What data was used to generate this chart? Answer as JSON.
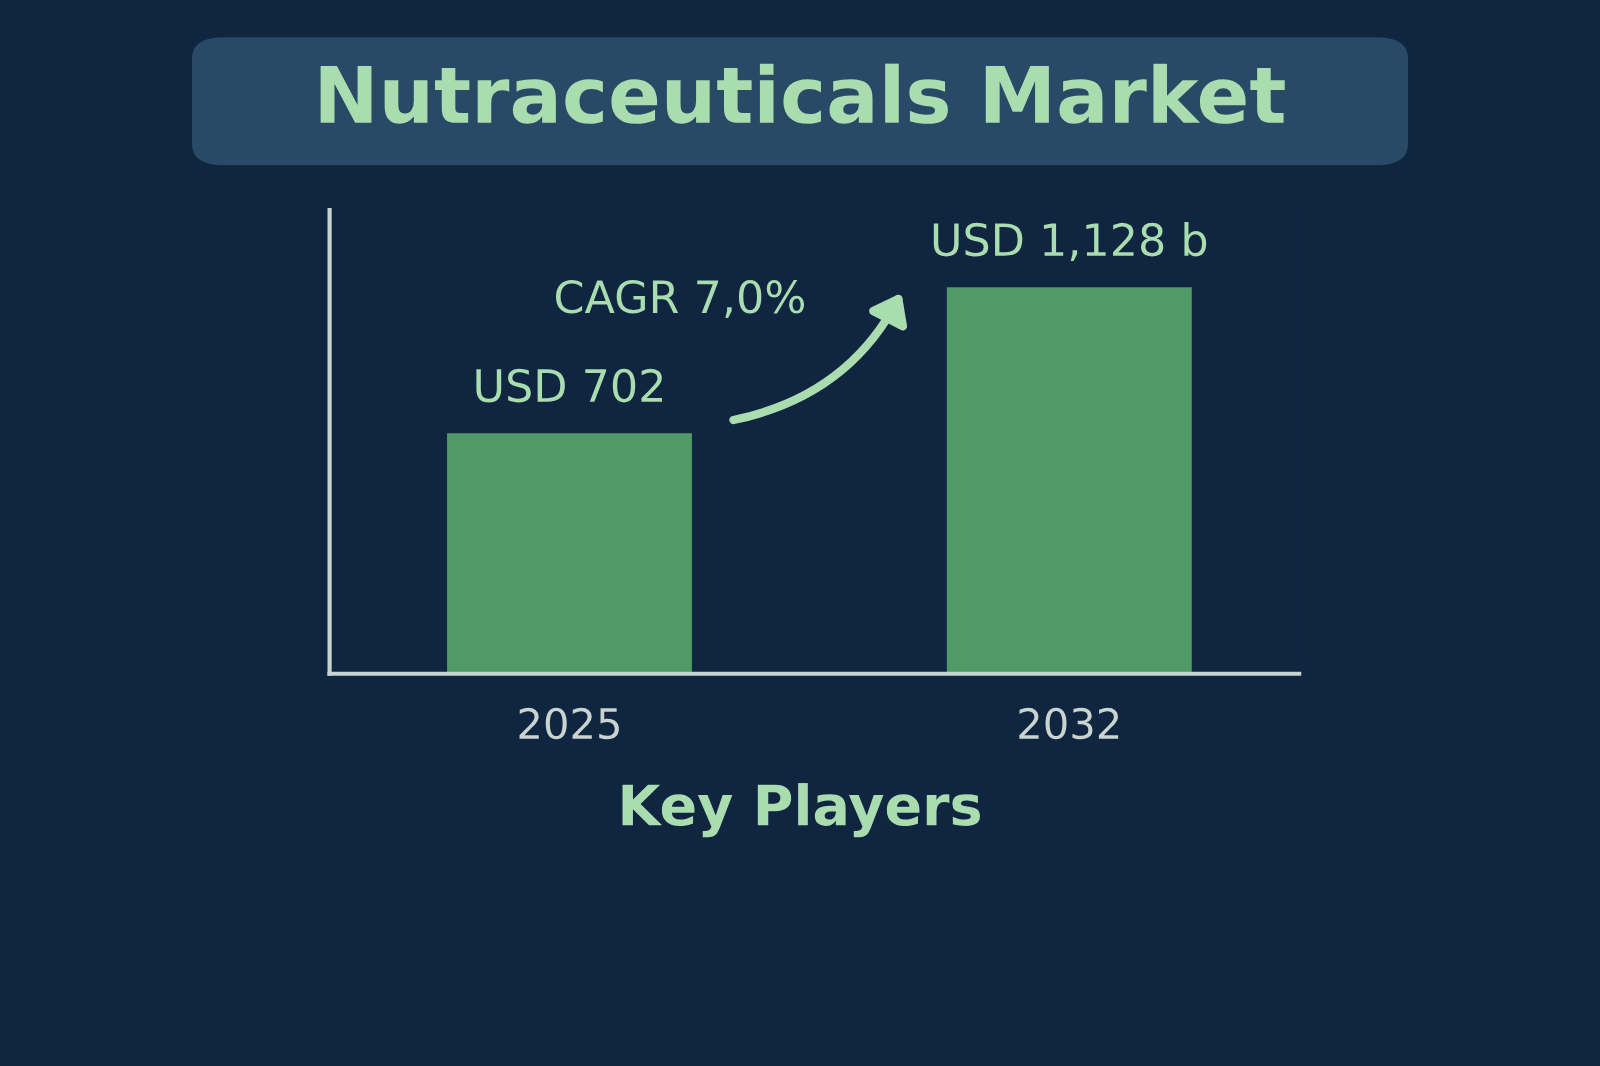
{
  "chart_data": {
    "type": "bar",
    "title": "Nutraceuticals Market",
    "categories": [
      "2025",
      "2032"
    ],
    "values": [
      702,
      1128
    ],
    "value_labels": [
      "USD 702",
      "USD 1,128 b"
    ],
    "color": "#4f9a66",
    "annotations": [
      "CAGR 7,0%",
      "Key Players"
    ],
    "grid": false,
    "legend": false
  }
}
